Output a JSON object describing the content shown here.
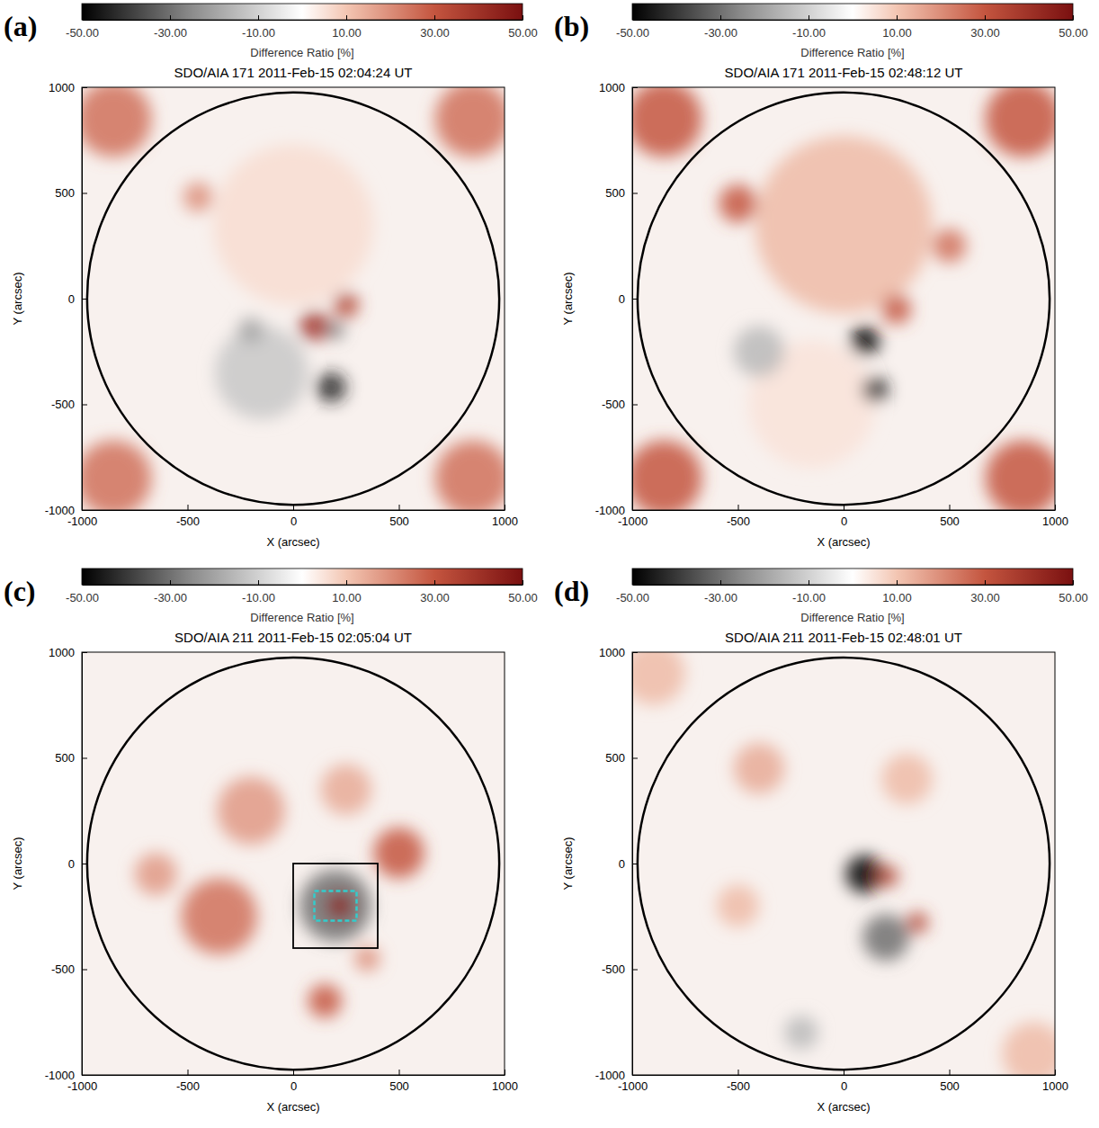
{
  "chart_data": [
    {
      "type": "image",
      "panel": "(a)",
      "title": "SDO/AIA 171 2011-Feb-15 02:04:24 UT",
      "x_label": "X (arcsec)",
      "y_label": "Y (arcsec)",
      "xlim": [
        -1000,
        1000
      ],
      "ylim": [
        -1000,
        1000
      ],
      "xticks": [
        -1000,
        -500,
        0,
        500,
        1000
      ],
      "yticks": [
        -1000,
        -500,
        0,
        500,
        1000
      ],
      "colorbar": {
        "label": "Difference Ratio [%]",
        "range": [
          -50,
          50
        ],
        "ticks": [
          {
            "value": -50,
            "label": "-50.00"
          },
          {
            "value": -30,
            "label": "-30.00"
          },
          {
            "value": -10,
            "label": "-10.00"
          },
          {
            "value": 10,
            "label": "10.00"
          },
          {
            "value": 30,
            "label": "30.00"
          },
          {
            "value": 50,
            "label": "50.00"
          }
        ]
      },
      "limb_radius": 975,
      "regions": [
        {
          "x": 0,
          "y": 350,
          "r": 380,
          "value": 6
        },
        {
          "x": -150,
          "y": -350,
          "r": 220,
          "value": -12
        },
        {
          "x": -850,
          "y": 850,
          "r": 180,
          "value": 25
        },
        {
          "x": 850,
          "y": 850,
          "r": 180,
          "value": 25
        },
        {
          "x": -850,
          "y": -850,
          "r": 180,
          "value": 25
        },
        {
          "x": 850,
          "y": -850,
          "r": 180,
          "value": 25
        },
        {
          "x": -450,
          "y": 480,
          "r": 70,
          "value": 20
        },
        {
          "x": -200,
          "y": -150,
          "r": 60,
          "value": -20
        },
        {
          "x": 100,
          "y": -130,
          "r": 70,
          "value": 40
        },
        {
          "x": 250,
          "y": -30,
          "r": 60,
          "value": 35
        },
        {
          "x": 180,
          "y": -420,
          "r": 70,
          "value": -45
        },
        {
          "x": 200,
          "y": -150,
          "r": 40,
          "value": -30
        }
      ]
    },
    {
      "type": "image",
      "panel": "(b)",
      "title": "SDO/AIA 171 2011-Feb-15 02:48:12 UT",
      "x_label": "X (arcsec)",
      "y_label": "Y (arcsec)",
      "xlim": [
        -1000,
        1000
      ],
      "ylim": [
        -1000,
        1000
      ],
      "xticks": [
        -1000,
        -500,
        0,
        500,
        1000
      ],
      "yticks": [
        -1000,
        -500,
        0,
        500,
        1000
      ],
      "colorbar": {
        "label": "Difference Ratio [%]",
        "range": [
          -50,
          50
        ],
        "ticks": [
          {
            "value": -50,
            "label": "-50.00"
          },
          {
            "value": -30,
            "label": "-30.00"
          },
          {
            "value": -10,
            "label": "-10.00"
          },
          {
            "value": 10,
            "label": "10.00"
          },
          {
            "value": 30,
            "label": "30.00"
          },
          {
            "value": 50,
            "label": "50.00"
          }
        ]
      },
      "limb_radius": 975,
      "regions": [
        {
          "x": 0,
          "y": 350,
          "r": 420,
          "value": 12
        },
        {
          "x": -150,
          "y": -500,
          "r": 300,
          "value": 5
        },
        {
          "x": -850,
          "y": 850,
          "r": 180,
          "value": 30
        },
        {
          "x": 850,
          "y": 850,
          "r": 180,
          "value": 30
        },
        {
          "x": -850,
          "y": -850,
          "r": 180,
          "value": 30
        },
        {
          "x": 850,
          "y": -850,
          "r": 180,
          "value": 30
        },
        {
          "x": -500,
          "y": 450,
          "r": 90,
          "value": 30
        },
        {
          "x": 500,
          "y": 250,
          "r": 80,
          "value": 25
        },
        {
          "x": -400,
          "y": -250,
          "r": 120,
          "value": -15
        },
        {
          "x": 250,
          "y": -50,
          "r": 70,
          "value": 30
        },
        {
          "x": 100,
          "y": -200,
          "r": 70,
          "value": -50
        },
        {
          "x": 150,
          "y": -430,
          "r": 60,
          "value": -45
        }
      ]
    },
    {
      "type": "image",
      "panel": "(c)",
      "title": "SDO/AIA 211 2011-Feb-15 02:05:04 UT",
      "x_label": "X (arcsec)",
      "y_label": "Y (arcsec)",
      "xlim": [
        -1000,
        1000
      ],
      "ylim": [
        -1000,
        1000
      ],
      "xticks": [
        -1000,
        -500,
        0,
        500,
        1000
      ],
      "yticks": [
        -1000,
        -500,
        0,
        500,
        1000
      ],
      "colorbar": {
        "label": "Difference Ratio [%]",
        "range": [
          -50,
          50
        ],
        "ticks": [
          {
            "value": -50,
            "label": "-50.00"
          },
          {
            "value": -30,
            "label": "-30.00"
          },
          {
            "value": -10,
            "label": "-10.00"
          },
          {
            "value": 10,
            "label": "10.00"
          },
          {
            "value": 30,
            "label": "30.00"
          },
          {
            "value": 50,
            "label": "50.00"
          }
        ]
      },
      "limb_radius": 975,
      "regions": [
        {
          "x": -350,
          "y": -250,
          "r": 180,
          "value": 25
        },
        {
          "x": -200,
          "y": 250,
          "r": 160,
          "value": 18
        },
        {
          "x": 250,
          "y": 350,
          "r": 120,
          "value": 15
        },
        {
          "x": 500,
          "y": 50,
          "r": 120,
          "value": 30
        },
        {
          "x": -650,
          "y": -50,
          "r": 100,
          "value": 18
        },
        {
          "x": 150,
          "y": -650,
          "r": 80,
          "value": 30
        },
        {
          "x": 350,
          "y": -450,
          "r": 60,
          "value": 20
        },
        {
          "x": 200,
          "y": -200,
          "r": 170,
          "value": -30
        },
        {
          "x": 220,
          "y": -200,
          "r": 60,
          "value": 45
        }
      ],
      "boxes": [
        {
          "x": [
            0,
            400
          ],
          "y": [
            -400,
            0
          ],
          "color": "#000000",
          "line_style": "solid"
        },
        {
          "x": [
            100,
            300
          ],
          "y": [
            -270,
            -130
          ],
          "color": "#33cccc",
          "line_style": "dashed"
        }
      ]
    },
    {
      "type": "image",
      "panel": "(d)",
      "title": "SDO/AIA 211 2011-Feb-15 02:48:01 UT",
      "x_label": "X (arcsec)",
      "y_label": "Y (arcsec)",
      "xlim": [
        -1000,
        1000
      ],
      "ylim": [
        -1000,
        1000
      ],
      "xticks": [
        -1000,
        -500,
        0,
        500,
        1000
      ],
      "yticks": [
        -1000,
        -500,
        0,
        500,
        1000
      ],
      "colorbar": {
        "label": "Difference Ratio [%]",
        "range": [
          -50,
          50
        ],
        "ticks": [
          {
            "value": -50,
            "label": "-50.00"
          },
          {
            "value": -30,
            "label": "-30.00"
          },
          {
            "value": -10,
            "label": "-10.00"
          },
          {
            "value": 10,
            "label": "10.00"
          },
          {
            "value": 30,
            "label": "30.00"
          },
          {
            "value": 50,
            "label": "50.00"
          }
        ]
      },
      "limb_radius": 975,
      "regions": [
        {
          "x": -900,
          "y": 900,
          "r": 150,
          "value": 12
        },
        {
          "x": 900,
          "y": -900,
          "r": 150,
          "value": 12
        },
        {
          "x": -400,
          "y": 450,
          "r": 120,
          "value": 15
        },
        {
          "x": 300,
          "y": 400,
          "r": 120,
          "value": 12
        },
        {
          "x": -500,
          "y": -200,
          "r": 100,
          "value": 12
        },
        {
          "x": -200,
          "y": -800,
          "r": 80,
          "value": -15
        },
        {
          "x": 200,
          "y": -350,
          "r": 110,
          "value": -30
        },
        {
          "x": 350,
          "y": -280,
          "r": 50,
          "value": 35
        },
        {
          "x": 100,
          "y": -50,
          "r": 90,
          "value": -50
        },
        {
          "x": 210,
          "y": -60,
          "r": 50,
          "value": 35
        }
      ]
    }
  ]
}
